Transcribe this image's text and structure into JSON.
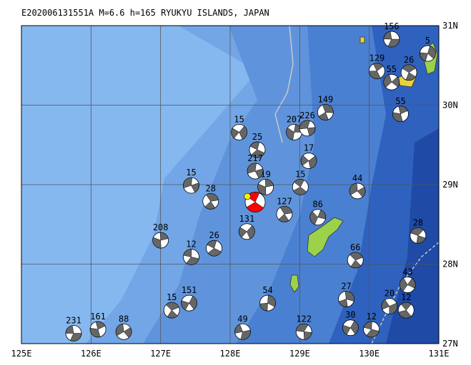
{
  "map": {
    "title": "E202006131551A M=6.6 h=165 RYUKYU ISLANDS, JAPAN",
    "lon_ticks": [
      {
        "value": 125,
        "label": "125E"
      },
      {
        "value": 126,
        "label": "126E"
      },
      {
        "value": 127,
        "label": "127E"
      },
      {
        "value": 128,
        "label": "128E"
      },
      {
        "value": 129,
        "label": "129E"
      },
      {
        "value": 130,
        "label": "130E"
      },
      {
        "value": 131,
        "label": "131E"
      }
    ],
    "lat_ticks": [
      {
        "value": 31,
        "label": "31N"
      },
      {
        "value": 30,
        "label": "30N"
      },
      {
        "value": 29,
        "label": "29N"
      },
      {
        "value": 28,
        "label": "28N"
      },
      {
        "value": 27,
        "label": "27N"
      }
    ],
    "lonlim": [
      125,
      131
    ],
    "latlim": [
      27,
      31
    ],
    "main_event": {
      "lon": 128.36,
      "lat": 28.78,
      "color": "#ff0000"
    },
    "events": [
      {
        "depth": 231,
        "lon": 125.75,
        "lat": 27.13
      },
      {
        "depth": 161,
        "lon": 126.1,
        "lat": 27.18
      },
      {
        "depth": 88,
        "lon": 126.47,
        "lat": 27.15
      },
      {
        "depth": 15,
        "lon": 127.16,
        "lat": 27.42
      },
      {
        "depth": 151,
        "lon": 127.41,
        "lat": 27.51
      },
      {
        "depth": 12,
        "lon": 127.44,
        "lat": 28.09
      },
      {
        "depth": 208,
        "lon": 127.0,
        "lat": 28.3
      },
      {
        "depth": 15,
        "lon": 127.44,
        "lat": 28.99
      },
      {
        "depth": 28,
        "lon": 127.72,
        "lat": 28.79
      },
      {
        "depth": 15,
        "lon": 128.13,
        "lat": 29.66
      },
      {
        "depth": 25,
        "lon": 128.39,
        "lat": 29.44
      },
      {
        "depth": 207,
        "lon": 128.92,
        "lat": 29.66
      },
      {
        "depth": 226,
        "lon": 129.11,
        "lat": 29.71
      },
      {
        "depth": 149,
        "lon": 129.37,
        "lat": 29.91
      },
      {
        "depth": 17,
        "lon": 129.13,
        "lat": 29.3
      },
      {
        "depth": 15,
        "lon": 129.01,
        "lat": 28.97
      },
      {
        "depth": 86,
        "lon": 129.26,
        "lat": 28.59
      },
      {
        "depth": 122,
        "lon": 129.06,
        "lat": 27.15
      },
      {
        "depth": 27,
        "lon": 129.67,
        "lat": 27.56
      },
      {
        "depth": 20,
        "lon": 130.29,
        "lat": 27.47
      },
      {
        "depth": 12,
        "lon": 130.53,
        "lat": 27.42
      },
      {
        "depth": 43,
        "lon": 130.55,
        "lat": 27.74
      },
      {
        "depth": 28,
        "lon": 130.7,
        "lat": 28.36
      },
      {
        "depth": 54,
        "lon": 128.54,
        "lat": 27.51
      },
      {
        "depth": 49,
        "lon": 128.18,
        "lat": 27.15
      },
      {
        "depth": 129,
        "lon": 130.11,
        "lat": 30.43
      },
      {
        "depth": 55,
        "lon": 130.32,
        "lat": 30.29
      },
      {
        "depth": 26,
        "lon": 130.57,
        "lat": 30.41
      },
      {
        "depth": 5,
        "lon": 130.84,
        "lat": 30.65
      },
      {
        "depth": 156,
        "lon": 130.32,
        "lat": 30.83
      },
      {
        "depth": 55,
        "lon": 130.45,
        "lat": 29.89
      },
      {
        "depth": 44,
        "lon": 129.83,
        "lat": 28.92
      },
      {
        "depth": 66,
        "lon": 129.8,
        "lat": 28.05
      },
      {
        "depth": 30,
        "lon": 129.73,
        "lat": 27.2
      },
      {
        "depth": 12,
        "lon": 130.03,
        "lat": 27.18
      },
      {
        "depth": 19,
        "lon": 128.51,
        "lat": 28.97
      },
      {
        "depth": 217,
        "lon": 128.36,
        "lat": 29.17
      },
      {
        "depth": 127,
        "lon": 128.78,
        "lat": 28.63
      },
      {
        "depth": 131,
        "lon": 128.24,
        "lat": 28.41
      },
      {
        "depth": 26,
        "lon": 127.77,
        "lat": 28.2
      }
    ]
  }
}
